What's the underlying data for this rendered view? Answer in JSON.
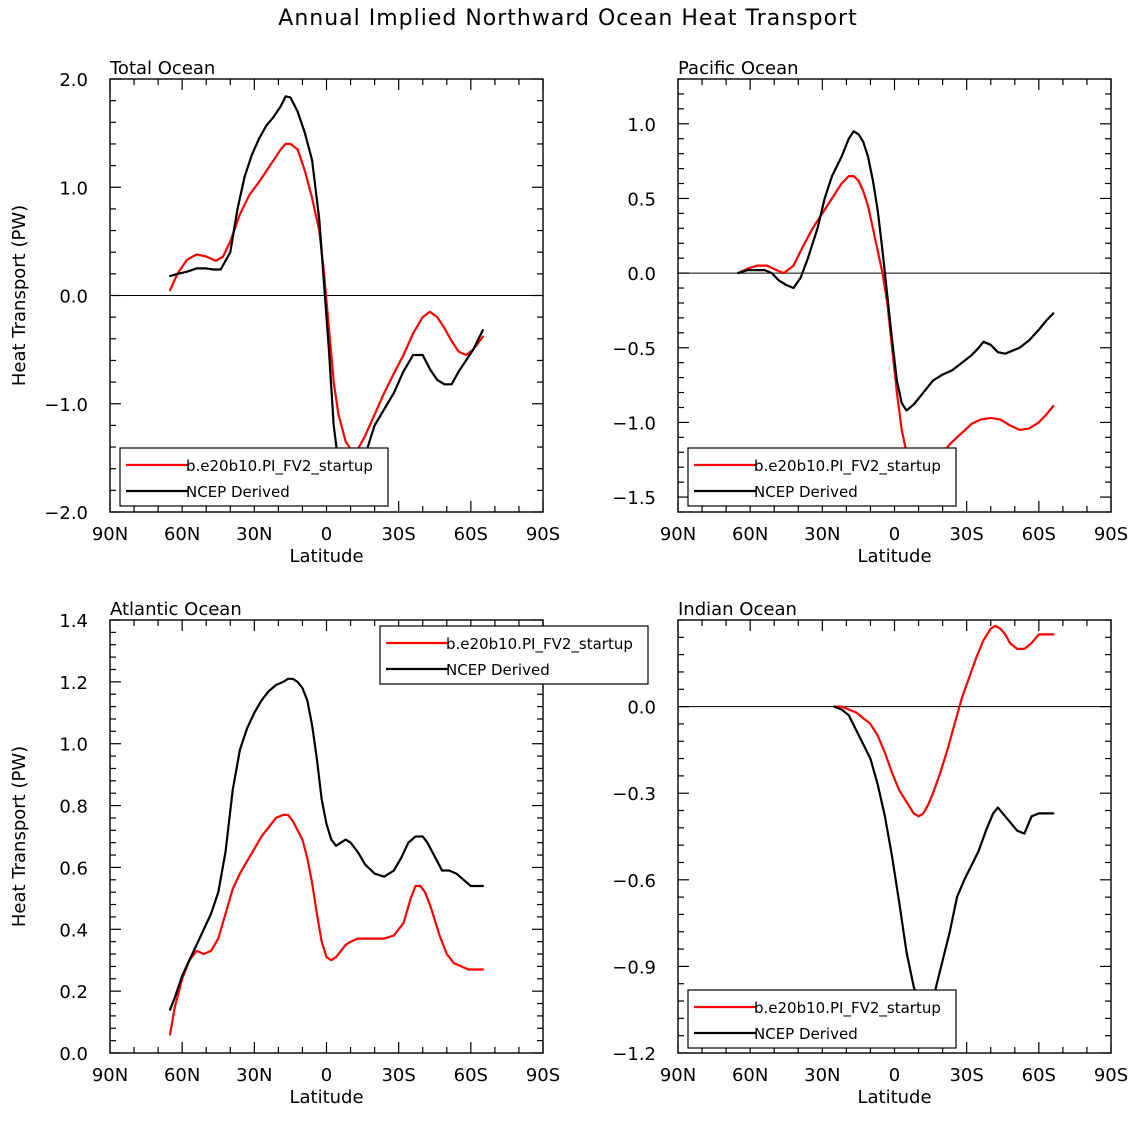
{
  "figure_title": "Annual Implied Northward Ocean Heat Transport",
  "colors": {
    "model": "#ff0000",
    "obs": "#000000",
    "axis": "#000000"
  },
  "chart_data": [
    {
      "type": "line",
      "title": "Total Ocean",
      "xlabel": "Latitude",
      "ylabel": "Heat Transport (PW)",
      "xlim": [
        90,
        -90
      ],
      "ylim": [
        -2.0,
        2.0
      ],
      "x_ticks": [
        90,
        60,
        30,
        0,
        -30,
        -60,
        -90
      ],
      "x_tick_labels": [
        "90N",
        "60N",
        "30N",
        "0",
        "30S",
        "60S",
        "90S"
      ],
      "y_ticks": [
        -2.0,
        -1.0,
        0.0,
        1.0,
        2.0
      ],
      "y_tick_labels": [
        "−2.0",
        "−1.0",
        "0.0",
        "1.0",
        "2.0"
      ],
      "zero_line": true,
      "legend": {
        "placement": "bottom-left",
        "entries": [
          "b.e20b10.PI_FV2_startup",
          "NCEP Derived"
        ]
      },
      "series": [
        {
          "name": "b.e20b10.PI_FV2_startup",
          "color": "#ff0000",
          "x": [
            65,
            62,
            58,
            54,
            50,
            46,
            43,
            40,
            36,
            32,
            28,
            25,
            22,
            19,
            17,
            15,
            12,
            9,
            6,
            3,
            1,
            -1,
            -3,
            -5,
            -8,
            -11,
            -13,
            -16,
            -20,
            -24,
            -28,
            -32,
            -36,
            -40,
            -43,
            -46,
            -49,
            -52,
            -55,
            -58,
            -61,
            -65
          ],
          "y": [
            0.05,
            0.2,
            0.33,
            0.38,
            0.36,
            0.32,
            0.36,
            0.5,
            0.75,
            0.93,
            1.05,
            1.15,
            1.25,
            1.35,
            1.4,
            1.4,
            1.35,
            1.15,
            0.9,
            0.6,
            0.2,
            -0.3,
            -0.8,
            -1.1,
            -1.35,
            -1.45,
            -1.42,
            -1.3,
            -1.1,
            -0.9,
            -0.72,
            -0.55,
            -0.35,
            -0.2,
            -0.15,
            -0.2,
            -0.3,
            -0.42,
            -0.52,
            -0.55,
            -0.5,
            -0.38
          ]
        },
        {
          "name": "NCEP Derived",
          "color": "#000000",
          "x": [
            65,
            62,
            58,
            54,
            50,
            47,
            44,
            40,
            37,
            34,
            31,
            28,
            25,
            22,
            19,
            17,
            15,
            12,
            9,
            6,
            3,
            1,
            -1,
            -3,
            -5,
            -8,
            -11,
            -13,
            -16,
            -20,
            -24,
            -28,
            -32,
            -36,
            -40,
            -43,
            -46,
            -49,
            -52,
            -55,
            -58,
            -61,
            -65
          ],
          "y": [
            0.18,
            0.2,
            0.22,
            0.25,
            0.25,
            0.24,
            0.24,
            0.4,
            0.8,
            1.1,
            1.3,
            1.45,
            1.57,
            1.65,
            1.75,
            1.84,
            1.83,
            1.7,
            1.5,
            1.25,
            0.7,
            0.1,
            -0.5,
            -1.2,
            -1.55,
            -1.65,
            -1.67,
            -1.62,
            -1.48,
            -1.2,
            -1.05,
            -0.9,
            -0.7,
            -0.55,
            -0.55,
            -0.68,
            -0.78,
            -0.82,
            -0.82,
            -0.7,
            -0.6,
            -0.5,
            -0.32
          ]
        }
      ]
    },
    {
      "type": "line",
      "title": "Pacific Ocean",
      "xlabel": "Latitude",
      "ylabel": "",
      "xlim": [
        90,
        -90
      ],
      "ylim": [
        -1.6,
        1.3
      ],
      "x_ticks": [
        90,
        60,
        30,
        0,
        -30,
        -60,
        -90
      ],
      "x_tick_labels": [
        "90N",
        "60N",
        "30N",
        "0",
        "30S",
        "60S",
        "90S"
      ],
      "y_ticks": [
        -1.5,
        -1.0,
        -0.5,
        0.0,
        0.5,
        1.0
      ],
      "y_tick_labels": [
        "−1.5",
        "−1.0",
        "−0.5",
        "0.0",
        "0.5",
        "1.0"
      ],
      "zero_line": true,
      "legend": {
        "placement": "bottom-left",
        "entries": [
          "b.e20b10.PI_FV2_startup",
          "NCEP Derived"
        ]
      },
      "series": [
        {
          "name": "b.e20b10.PI_FV2_startup",
          "color": "#ff0000",
          "x": [
            65,
            61,
            57,
            53,
            49,
            46,
            42,
            38,
            34,
            30,
            26,
            22,
            19,
            17,
            15,
            13,
            11,
            9,
            7,
            5,
            3,
            1,
            -1,
            -3,
            -5,
            -8,
            -11,
            -13,
            -16,
            -20,
            -24,
            -28,
            -32,
            -36,
            -40,
            -44,
            -48,
            -52,
            -56,
            -60,
            -63,
            -66
          ],
          "y": [
            0.0,
            0.03,
            0.05,
            0.05,
            0.02,
            0.0,
            0.05,
            0.18,
            0.3,
            0.4,
            0.5,
            0.6,
            0.65,
            0.65,
            0.62,
            0.55,
            0.45,
            0.3,
            0.15,
            0.0,
            -0.2,
            -0.5,
            -0.8,
            -1.05,
            -1.2,
            -1.33,
            -1.37,
            -1.35,
            -1.28,
            -1.2,
            -1.13,
            -1.07,
            -1.01,
            -0.98,
            -0.97,
            -0.98,
            -1.02,
            -1.05,
            -1.04,
            -1.0,
            -0.95,
            -0.89
          ]
        },
        {
          "name": "NCEP Derived",
          "color": "#000000",
          "x": [
            65,
            61,
            57,
            54,
            51,
            48,
            45,
            42,
            39,
            36,
            32,
            29,
            26,
            22,
            19,
            17,
            15,
            13,
            11,
            9,
            7,
            5,
            3,
            1,
            -1,
            -3,
            -5,
            -8,
            -11,
            -13,
            -16,
            -20,
            -24,
            -28,
            -32,
            -35,
            -37,
            -40,
            -43,
            -46,
            -49,
            -52,
            -56,
            -60,
            -63,
            -66
          ],
          "y": [
            0.0,
            0.02,
            0.02,
            0.02,
            0.0,
            -0.05,
            -0.08,
            -0.1,
            -0.03,
            0.1,
            0.3,
            0.5,
            0.65,
            0.78,
            0.9,
            0.95,
            0.93,
            0.88,
            0.78,
            0.62,
            0.42,
            0.15,
            -0.15,
            -0.45,
            -0.72,
            -0.87,
            -0.92,
            -0.88,
            -0.82,
            -0.78,
            -0.72,
            -0.68,
            -0.65,
            -0.6,
            -0.55,
            -0.5,
            -0.46,
            -0.48,
            -0.53,
            -0.54,
            -0.52,
            -0.5,
            -0.45,
            -0.38,
            -0.32,
            -0.27
          ]
        }
      ]
    },
    {
      "type": "line",
      "title": "Atlantic Ocean",
      "xlabel": "Latitude",
      "ylabel": "Heat Transport (PW)",
      "xlim": [
        90,
        -90
      ],
      "ylim": [
        0.0,
        1.4
      ],
      "x_ticks": [
        90,
        60,
        30,
        0,
        -30,
        -60,
        -90
      ],
      "x_tick_labels": [
        "90N",
        "60N",
        "30N",
        "0",
        "30S",
        "60S",
        "90S"
      ],
      "y_ticks": [
        0.0,
        0.2,
        0.4,
        0.6,
        0.8,
        1.0,
        1.2,
        1.4
      ],
      "y_tick_labels": [
        "0.0",
        "0.2",
        "0.4",
        "0.6",
        "0.8",
        "1.0",
        "1.2",
        "1.4"
      ],
      "zero_line": false,
      "legend": {
        "placement": "top-right",
        "entries": [
          "b.e20b10.PI_FV2_startup",
          "NCEP Derived"
        ]
      },
      "series": [
        {
          "name": "b.e20b10.PI_FV2_startup",
          "color": "#ff0000",
          "x": [
            65,
            63,
            60,
            57,
            54,
            51,
            48,
            45,
            42,
            39,
            36,
            33,
            30,
            27,
            24,
            21,
            18,
            16,
            14,
            12,
            10,
            8,
            6,
            4,
            2,
            0,
            -2,
            -4,
            -6,
            -8,
            -10,
            -13,
            -16,
            -20,
            -24,
            -28,
            -32,
            -35,
            -37,
            -39,
            -41,
            -43,
            -45,
            -47,
            -50,
            -53,
            -56,
            -59,
            -62,
            -65
          ],
          "y": [
            0.06,
            0.15,
            0.24,
            0.3,
            0.33,
            0.32,
            0.33,
            0.37,
            0.45,
            0.53,
            0.58,
            0.62,
            0.66,
            0.7,
            0.73,
            0.76,
            0.77,
            0.77,
            0.75,
            0.72,
            0.69,
            0.63,
            0.55,
            0.45,
            0.36,
            0.31,
            0.3,
            0.31,
            0.33,
            0.35,
            0.36,
            0.37,
            0.37,
            0.37,
            0.37,
            0.38,
            0.42,
            0.5,
            0.54,
            0.54,
            0.52,
            0.48,
            0.43,
            0.38,
            0.32,
            0.29,
            0.28,
            0.27,
            0.27,
            0.27
          ]
        },
        {
          "name": "NCEP Derived",
          "color": "#000000",
          "x": [
            65,
            63,
            60,
            57,
            54,
            51,
            48,
            45,
            42,
            39,
            36,
            33,
            30,
            27,
            24,
            21,
            18,
            16,
            14,
            12,
            10,
            8,
            6,
            4,
            2,
            0,
            -2,
            -4,
            -6,
            -8,
            -10,
            -13,
            -16,
            -20,
            -24,
            -28,
            -31,
            -34,
            -37,
            -40,
            -42,
            -44,
            -46,
            -48,
            -51,
            -54,
            -57,
            -60,
            -63,
            -65
          ],
          "y": [
            0.14,
            0.18,
            0.25,
            0.3,
            0.35,
            0.4,
            0.45,
            0.52,
            0.65,
            0.85,
            0.98,
            1.05,
            1.1,
            1.14,
            1.17,
            1.19,
            1.2,
            1.21,
            1.21,
            1.2,
            1.18,
            1.14,
            1.06,
            0.95,
            0.82,
            0.74,
            0.69,
            0.67,
            0.68,
            0.69,
            0.68,
            0.65,
            0.61,
            0.58,
            0.57,
            0.59,
            0.63,
            0.68,
            0.7,
            0.7,
            0.68,
            0.65,
            0.62,
            0.59,
            0.59,
            0.58,
            0.56,
            0.54,
            0.54,
            0.54
          ]
        }
      ]
    },
    {
      "type": "line",
      "title": "Indian Ocean",
      "xlabel": "Latitude",
      "ylabel": "",
      "xlim": [
        90,
        -90
      ],
      "ylim": [
        -1.2,
        0.3
      ],
      "x_ticks": [
        90,
        60,
        30,
        0,
        -30,
        -60,
        -90
      ],
      "x_tick_labels": [
        "90N",
        "60N",
        "30N",
        "0",
        "30S",
        "60S",
        "90S"
      ],
      "y_ticks": [
        -1.2,
        -0.9,
        -0.6,
        -0.3,
        0.0
      ],
      "y_tick_labels": [
        "−1.2",
        "−0.9",
        "−0.6",
        "−0.3",
        "0.0"
      ],
      "zero_line": true,
      "legend": {
        "placement": "bottom-left",
        "entries": [
          "b.e20b10.PI_FV2_startup",
          "NCEP Derived"
        ]
      },
      "series": [
        {
          "name": "b.e20b10.PI_FV2_startup",
          "color": "#ff0000",
          "x": [
            25,
            22,
            19,
            16,
            13,
            10,
            7,
            4,
            1,
            -2,
            -5,
            -8,
            -10,
            -12,
            -14,
            -16,
            -19,
            -22,
            -25,
            -28,
            -31,
            -34,
            -37,
            -40,
            -42,
            -44,
            -46,
            -48,
            -51,
            -54,
            -57,
            -60,
            -63,
            -66
          ],
          "y": [
            0.0,
            0.0,
            -0.01,
            -0.02,
            -0.04,
            -0.06,
            -0.1,
            -0.16,
            -0.23,
            -0.29,
            -0.33,
            -0.37,
            -0.38,
            -0.37,
            -0.34,
            -0.3,
            -0.23,
            -0.15,
            -0.06,
            0.03,
            0.1,
            0.17,
            0.23,
            0.27,
            0.28,
            0.27,
            0.25,
            0.22,
            0.2,
            0.2,
            0.22,
            0.25,
            0.25,
            0.25
          ]
        },
        {
          "name": "NCEP Derived",
          "color": "#000000",
          "x": [
            25,
            22,
            19,
            16,
            13,
            10,
            7,
            4,
            1,
            -2,
            -5,
            -8,
            -10,
            -12,
            -14,
            -17,
            -20,
            -23,
            -26,
            -29,
            -32,
            -35,
            -38,
            -41,
            -43,
            -45,
            -48,
            -51,
            -54,
            -57,
            -60,
            -63,
            -66
          ],
          "y": [
            0.0,
            -0.01,
            -0.03,
            -0.08,
            -0.13,
            -0.18,
            -0.27,
            -0.38,
            -0.52,
            -0.68,
            -0.85,
            -0.97,
            -1.03,
            -1.05,
            -1.03,
            -0.98,
            -0.88,
            -0.78,
            -0.66,
            -0.6,
            -0.55,
            -0.5,
            -0.43,
            -0.37,
            -0.35,
            -0.37,
            -0.4,
            -0.43,
            -0.44,
            -0.38,
            -0.37,
            -0.37,
            -0.37
          ]
        }
      ]
    }
  ]
}
